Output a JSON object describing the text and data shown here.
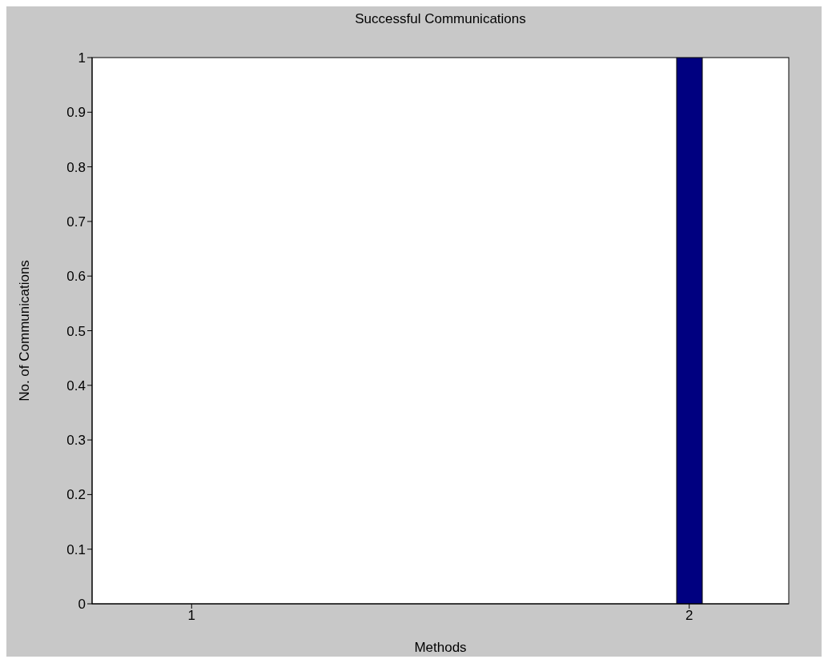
{
  "chart_data": {
    "type": "bar",
    "title": "Successful Communications",
    "xlabel": "Methods",
    "ylabel": "No. of Communications",
    "x": [
      1,
      2
    ],
    "values": [
      0,
      1
    ],
    "color": "#000080",
    "xlim": [
      0.8,
      2.2
    ],
    "xticks": [
      1,
      2
    ],
    "ylim": [
      0,
      1
    ],
    "yticks": [
      0,
      0.1,
      0.2,
      0.3,
      0.4,
      0.5,
      0.6,
      0.7,
      0.8,
      0.9,
      1
    ]
  }
}
